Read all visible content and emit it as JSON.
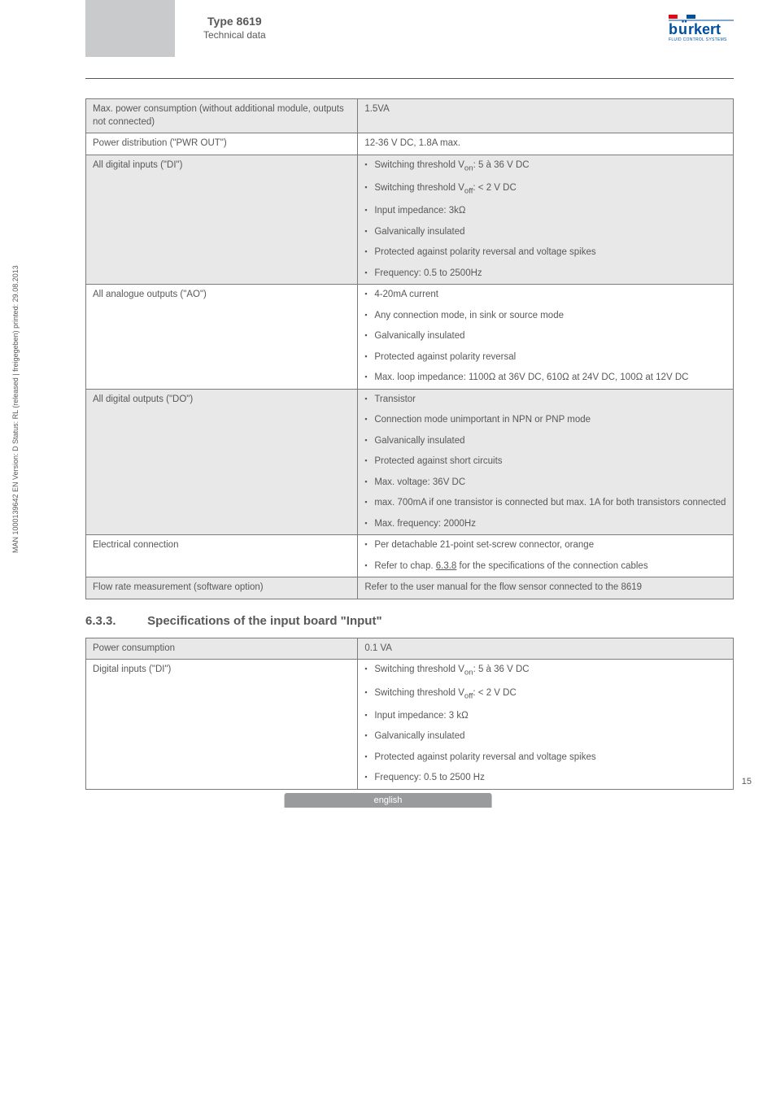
{
  "header": {
    "type_line": "Type 8619",
    "subtitle": "Technical data",
    "logo_brand": "burkert",
    "logo_tagline": "FLUID CONTROL SYSTEMS",
    "flag_colors": [
      "#e30613",
      "#ffffff",
      "#004f9e"
    ]
  },
  "table1": {
    "rows": [
      {
        "grey": true,
        "label": "Max. power consumption (without additional module, outputs not connected)",
        "value": "1.5VA",
        "bullets": false
      },
      {
        "grey": false,
        "label": "Power distribution (\"PWR OUT\")",
        "value": "12-36 V DC, 1.8A max.",
        "bullets": false
      },
      {
        "grey": true,
        "label": "All digital inputs (\"DI\")",
        "bullets": true,
        "items": [
          "Switching threshold V<sub>on</sub>: 5 à 36 V DC",
          "Switching threshold V<sub>off</sub>: < 2 V DC",
          "Input impedance: 3kΩ",
          "Galvanically insulated",
          "Protected against polarity reversal and voltage spikes",
          "Frequency: 0.5 to 2500Hz"
        ]
      },
      {
        "grey": false,
        "label": "All analogue outputs (\"AO\")",
        "bullets": true,
        "items": [
          "4-20mA current",
          "Any connection mode, in sink or source mode",
          "Galvanically insulated",
          "Protected against polarity reversal",
          "Max. loop impedance: 1100Ω at 36V DC, 610Ω at 24V DC, 100Ω at 12V DC"
        ]
      },
      {
        "grey": true,
        "label": "All digital outputs (\"DO\")",
        "bullets": true,
        "items": [
          "Transistor",
          "Connection mode unimportant in NPN or PNP mode",
          "Galvanically insulated",
          "Protected against short circuits",
          "Max. voltage: 36V DC",
          "max. 700mA if one transistor is connected but max. 1A for both transistors connected",
          "Max. frequency: 2000Hz"
        ]
      },
      {
        "grey": false,
        "label": "Electrical connection",
        "bullets": true,
        "items": [
          "Per detachable 21-point set-screw connector, orange",
          "Refer to chap. <u>6.3.8</u> for the specifications of the connection cables"
        ]
      },
      {
        "grey": true,
        "label": "Flow rate measurement (software option)",
        "value": "Refer to the user manual for the flow sensor connected to the 8619",
        "bullets": false
      }
    ]
  },
  "section": {
    "num": "6.3.3.",
    "title": "Specifications of the input board \"Input\""
  },
  "table2": {
    "rows": [
      {
        "grey": true,
        "label": "Power consumption",
        "value": "0.1 VA",
        "bullets": false
      },
      {
        "grey": false,
        "label": "Digital inputs (\"DI\")",
        "bullets": true,
        "items": [
          "Switching threshold V<sub>on</sub>: 5 à 36 V DC",
          "Switching threshold V<sub>off</sub>: < 2 V DC",
          "Input impedance: 3 kΩ",
          "Galvanically insulated",
          "Protected against polarity reversal and voltage spikes",
          "Frequency: 0.5 to 2500 Hz"
        ]
      }
    ]
  },
  "side_text": "MAN 1000139642 EN Version: D Status: RL (released | freigegeben) printed: 29.08.2013",
  "page_num": "15",
  "footer": "english"
}
